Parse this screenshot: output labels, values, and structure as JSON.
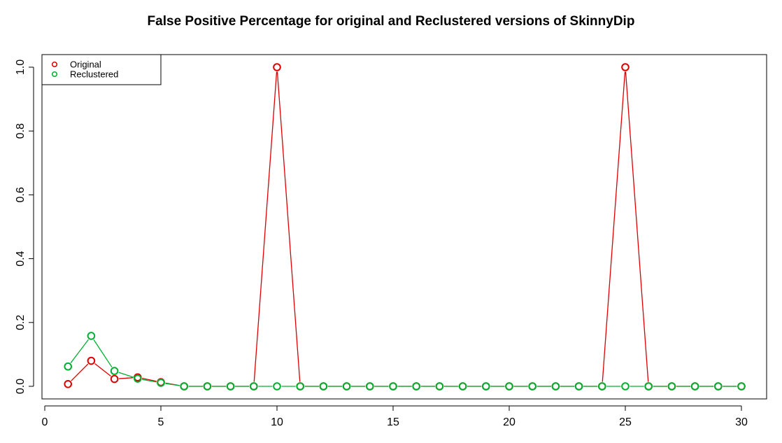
{
  "chart_data": {
    "type": "line",
    "title": "False Positive Percentage for original and Reclustered versions of SkinnyDip",
    "xlabel": "",
    "ylabel": "",
    "xlim": [
      0,
      30
    ],
    "ylim": [
      0,
      1.0
    ],
    "x_ticks": [
      "0",
      "5",
      "10",
      "15",
      "20",
      "25",
      "30"
    ],
    "y_ticks": [
      "0.0",
      "0.2",
      "0.4",
      "0.6",
      "0.8",
      "1.0"
    ],
    "legend_position": "top-left",
    "grid": false,
    "x": [
      1,
      2,
      3,
      4,
      5,
      6,
      7,
      8,
      9,
      10,
      11,
      12,
      13,
      14,
      15,
      16,
      17,
      18,
      19,
      20,
      21,
      22,
      23,
      24,
      25,
      26,
      27,
      28,
      29,
      30
    ],
    "series": [
      {
        "name": "Original",
        "color": "#dd0000",
        "values": [
          0.007,
          0.08,
          0.023,
          0.028,
          0.013,
          0,
          0,
          0,
          0,
          1.0,
          0,
          0,
          0,
          0,
          0,
          0,
          0,
          0,
          0,
          0,
          0,
          0,
          0,
          0,
          1.0,
          0,
          0,
          0,
          0,
          0
        ]
      },
      {
        "name": "Reclustered",
        "color": "#00b030",
        "values": [
          0.062,
          0.158,
          0.048,
          0.024,
          0.011,
          0,
          0,
          0,
          0,
          0,
          0,
          0,
          0,
          0,
          0,
          0,
          0,
          0,
          0,
          0,
          0,
          0,
          0,
          0,
          0,
          0,
          0,
          0,
          0,
          0
        ]
      }
    ]
  }
}
